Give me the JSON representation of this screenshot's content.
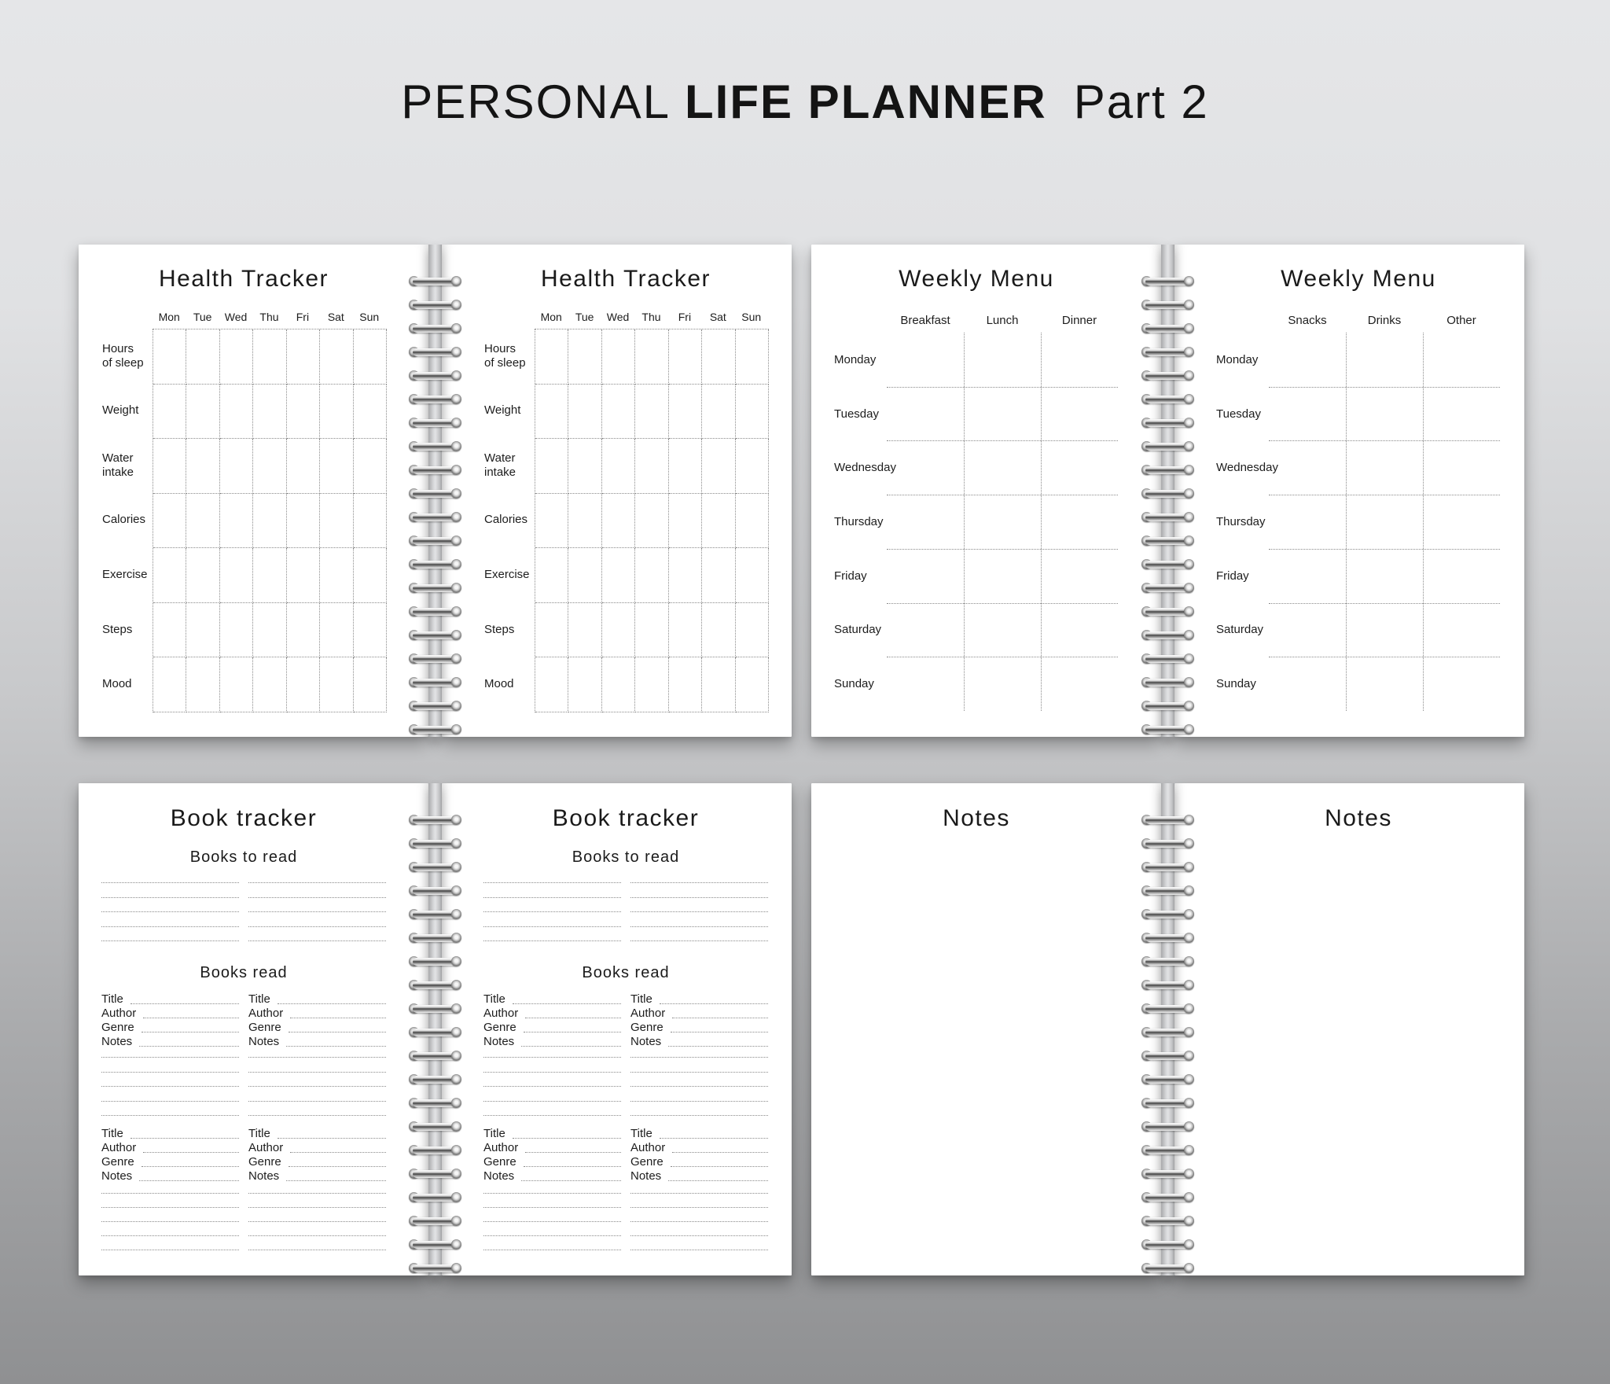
{
  "main_title": {
    "part1": "PERSONAL",
    "part2": "LIFE PLANNER",
    "part3": "Part 2"
  },
  "colors": {
    "background_top": "#e5e6e8",
    "background_bottom": "#8f9092",
    "page": "#ffffff",
    "text": "#1d1d1d",
    "dotted_line": "#8a8a8a",
    "spine_metal": "#c9cacc"
  },
  "health_tracker": {
    "page_title": "Health Tracker",
    "days": [
      "Mon",
      "Tue",
      "Wed",
      "Thu",
      "Fri",
      "Sat",
      "Sun"
    ],
    "row_labels": [
      [
        "Hours",
        "of sleep"
      ],
      [
        "Weight"
      ],
      [
        "Water",
        "intake"
      ],
      [
        "Calories"
      ],
      [
        "Exercise"
      ],
      [
        "Steps"
      ],
      [
        "Mood"
      ]
    ]
  },
  "weekly_menu": {
    "page_title": "Weekly Menu",
    "meal_columns": [
      "Breakfast",
      "Lunch",
      "Dinner"
    ],
    "other_columns": [
      "Snacks",
      "Drinks",
      "Other"
    ],
    "days": [
      "Monday",
      "Tuesday",
      "Wednesday",
      "Thursday",
      "Friday",
      "Saturday",
      "Sunday"
    ]
  },
  "book_tracker": {
    "page_title": "Book tracker",
    "to_read_heading": "Books to read",
    "read_heading": "Books read",
    "entry_fields": [
      "Title",
      "Author",
      "Genre",
      "Notes"
    ]
  },
  "notes": {
    "page_title": "Notes"
  }
}
